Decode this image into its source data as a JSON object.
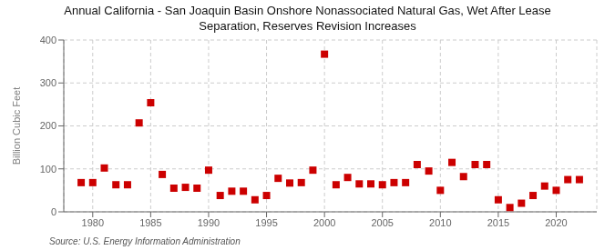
{
  "chart_data": {
    "type": "scatter",
    "title": "Annual California - San Joaquin Basin Onshore Nonassociated Natural Gas, Wet After Lease\nSeparation, Reserves Revision Increases",
    "ylabel": "Billion Cubic Feet",
    "source": "Source: U.S. Energy Information Administration",
    "color": "#cc0000",
    "marker": "square",
    "grid": true,
    "x": [
      1979,
      1980,
      1981,
      1982,
      1983,
      1984,
      1985,
      1986,
      1987,
      1988,
      1989,
      1990,
      1991,
      1992,
      1993,
      1994,
      1995,
      1996,
      1997,
      1998,
      1999,
      2000,
      2001,
      2002,
      2003,
      2004,
      2005,
      2006,
      2007,
      2008,
      2009,
      2010,
      2011,
      2012,
      2013,
      2014,
      2015,
      2016,
      2017,
      2018,
      2019,
      2020,
      2021,
      2022
    ],
    "values": [
      68,
      68,
      102,
      63,
      63,
      207,
      254,
      87,
      55,
      57,
      55,
      97,
      38,
      48,
      48,
      28,
      38,
      78,
      67,
      68,
      97,
      367,
      63,
      80,
      65,
      65,
      63,
      68,
      68,
      110,
      95,
      50,
      115,
      82,
      110,
      110,
      28,
      10,
      20,
      38,
      60,
      50,
      75,
      75
    ],
    "xlim": [
      1977.5,
      2023.5
    ],
    "ylim": [
      0,
      400
    ],
    "xticks": [
      1980,
      1985,
      1990,
      1995,
      2000,
      2005,
      2010,
      2015,
      2020
    ],
    "yticks": [
      0,
      100,
      200,
      300,
      400
    ]
  }
}
